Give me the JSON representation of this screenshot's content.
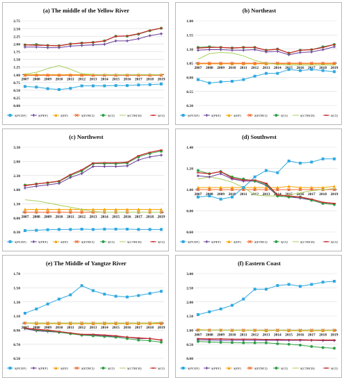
{
  "figure": {
    "legend_labels": [
      "S(PCEF)",
      "S(PEF)",
      "S(EF)",
      "S(ETHCI)",
      "S(CI)",
      "S(CTHCH)",
      "S(CI)"
    ],
    "colors": {
      "S_PCEF": "#2fa8e0",
      "S_PEF": "#6a3d9a",
      "S_EF": "#f4a300",
      "S_ETHCI": "#f06a2f",
      "S_CI_green": "#2ea043",
      "S_CTHCH": "#a6cf5a",
      "S_CI_red": "#c62828"
    },
    "markers": [
      "square",
      "cross",
      "triangle",
      "x",
      "circle",
      "none",
      "dash"
    ]
  },
  "chart_data": [
    {
      "type": "line",
      "title": "(a) The middle of the Yellow River",
      "x": [
        "2007",
        "2008",
        "2009",
        "2010",
        "2011",
        "2012",
        "2013",
        "2014",
        "2015",
        "2016",
        "2017",
        "2018",
        "2019"
      ],
      "y_ticks": [
        "0.00",
        "0.25",
        "0.50",
        "0.75",
        "1.00",
        "1.25",
        "1.50",
        "1.75",
        "2.00",
        "2.25",
        "2.50",
        "2.75"
      ],
      "ylim": [
        0,
        2.75
      ],
      "x_axis_at": 1.0,
      "grid": true,
      "legend": "bottom",
      "series": [
        {
          "name": "S(PCEF)",
          "values": [
            0.62,
            0.6,
            0.55,
            0.52,
            0.56,
            0.64,
            0.64,
            0.64,
            0.65,
            0.65,
            0.67,
            0.68,
            0.7
          ]
        },
        {
          "name": "S(PEF)",
          "values": [
            1.9,
            1.9,
            1.88,
            1.88,
            1.93,
            1.95,
            1.97,
            1.99,
            2.1,
            2.1,
            2.17,
            2.27,
            2.33
          ]
        },
        {
          "name": "S(EF)",
          "values": [
            1.0,
            1.0,
            1.0,
            1.0,
            1.0,
            1.0,
            1.0,
            1.0,
            1.0,
            1.0,
            1.0,
            1.0,
            1.0
          ]
        },
        {
          "name": "S(ETHCI)",
          "values": [
            0.98,
            0.98,
            0.98,
            0.98,
            0.98,
            0.98,
            0.98,
            0.98,
            0.98,
            0.98,
            0.98,
            0.98,
            0.98
          ]
        },
        {
          "name": "S(CI)",
          "values": [
            1.97,
            1.98,
            1.95,
            1.94,
            2.0,
            2.03,
            2.05,
            2.1,
            2.25,
            2.25,
            2.32,
            2.43,
            2.51
          ]
        },
        {
          "name": "S(CTHCH)",
          "values": [
            1.02,
            1.08,
            1.2,
            1.3,
            1.18,
            1.03,
            1.01,
            1.0,
            1.0,
            1.0,
            1.0,
            1.0,
            1.0
          ]
        },
        {
          "name": "S(CI)",
          "values": [
            1.97,
            1.96,
            1.95,
            1.94,
            2.0,
            2.03,
            2.05,
            2.1,
            2.25,
            2.26,
            2.33,
            2.44,
            2.51
          ]
        }
      ]
    },
    {
      "type": "line",
      "title": "(b) Northeast",
      "x": [
        "2007",
        "2008",
        "2009",
        "2010",
        "2011",
        "2012",
        "2013",
        "2014",
        "2015",
        "2016",
        "2017",
        "2018",
        "2019"
      ],
      "y_ticks": [
        "0.30",
        "0.55",
        "0.80",
        "1.05",
        "1.30",
        "1.55",
        "1.80"
      ],
      "ylim": [
        0.3,
        1.8
      ],
      "x_axis_at": 1.05,
      "grid": true,
      "legend": "bottom",
      "series": [
        {
          "name": "S(PCEF)",
          "values": [
            0.76,
            0.7,
            0.72,
            0.73,
            0.76,
            0.82,
            0.87,
            0.87,
            0.94,
            0.92,
            0.94,
            0.92,
            0.9
          ]
        },
        {
          "name": "S(PEF)",
          "values": [
            1.28,
            1.29,
            1.29,
            1.28,
            1.28,
            1.29,
            1.25,
            1.26,
            1.2,
            1.24,
            1.25,
            1.29,
            1.34
          ]
        },
        {
          "name": "S(EF)",
          "values": [
            1.04,
            1.04,
            1.04,
            1.04,
            1.04,
            1.04,
            1.04,
            1.04,
            1.04,
            1.04,
            1.04,
            1.04,
            1.04
          ]
        },
        {
          "name": "S(ETHCI)",
          "values": [
            1.05,
            1.05,
            1.05,
            1.05,
            1.05,
            1.05,
            1.05,
            1.05,
            1.05,
            1.05,
            1.05,
            1.05,
            1.05
          ]
        },
        {
          "name": "S(CI)",
          "values": [
            1.33,
            1.34,
            1.33,
            1.32,
            1.33,
            1.33,
            1.28,
            1.3,
            1.23,
            1.28,
            1.29,
            1.34,
            1.38
          ]
        },
        {
          "name": "S(CTHCH)",
          "values": [
            1.12,
            1.22,
            1.24,
            1.23,
            1.18,
            1.1,
            1.05,
            1.03,
            1.02,
            1.02,
            1.02,
            1.02,
            1.02
          ]
        },
        {
          "name": "S(CI)",
          "values": [
            1.32,
            1.33,
            1.33,
            1.32,
            1.33,
            1.33,
            1.28,
            1.3,
            1.23,
            1.28,
            1.29,
            1.33,
            1.38
          ]
        }
      ]
    },
    {
      "type": "line",
      "title": "(c) Northwest",
      "x": [
        "2007",
        "2008",
        "2009",
        "2010",
        "2011",
        "2012",
        "2013",
        "2014",
        "2015",
        "2016",
        "2017",
        "2018",
        "2019"
      ],
      "y_ticks": [
        "0.30",
        "0.80",
        "1.30",
        "1.80",
        "2.30",
        "2.80",
        "3.30"
      ],
      "ylim": [
        0.3,
        3.3
      ],
      "x_axis_at": 1.0,
      "grid": true,
      "legend": "bottom",
      "series": [
        {
          "name": "S(PCEF)",
          "values": [
            0.35,
            0.36,
            0.38,
            0.39,
            0.39,
            0.4,
            0.39,
            0.4,
            0.4,
            0.4,
            0.39,
            0.39,
            0.39
          ]
        },
        {
          "name": "S(PEF)",
          "values": [
            1.86,
            1.92,
            1.97,
            2.02,
            2.23,
            2.37,
            2.62,
            2.62,
            2.62,
            2.64,
            2.85,
            2.96,
            3.02
          ]
        },
        {
          "name": "S(EF)",
          "values": [
            1.1,
            1.1,
            1.1,
            1.1,
            1.1,
            1.1,
            1.1,
            1.1,
            1.1,
            1.1,
            1.1,
            1.1,
            1.1
          ]
        },
        {
          "name": "S(ETHCI)",
          "values": [
            1.0,
            1.0,
            1.0,
            1.0,
            1.0,
            1.0,
            1.0,
            1.0,
            1.0,
            1.0,
            1.0,
            1.0,
            1.0
          ]
        },
        {
          "name": "S(CI)",
          "values": [
            1.96,
            2.0,
            2.04,
            2.09,
            2.3,
            2.46,
            2.72,
            2.72,
            2.72,
            2.74,
            2.96,
            3.08,
            3.16
          ]
        },
        {
          "name": "S(CTHCH)",
          "values": [
            1.44,
            1.4,
            1.33,
            1.25,
            1.18,
            1.1,
            1.02,
            1.0,
            1.0,
            1.0,
            1.0,
            1.0,
            1.0
          ]
        },
        {
          "name": "S(CI)",
          "values": [
            1.94,
            2.0,
            2.05,
            2.1,
            2.33,
            2.5,
            2.74,
            2.75,
            2.75,
            2.77,
            3.0,
            3.12,
            3.2
          ]
        }
      ]
    },
    {
      "type": "line",
      "title": "(d) Southwest",
      "x": [
        "2007",
        "2008",
        "2009",
        "2010",
        "2011",
        "2012",
        "2013",
        "2014",
        "2015",
        "2016",
        "2017",
        "2018",
        "2019"
      ],
      "y_ticks": [
        "0.60",
        "0.80",
        "1.00",
        "1.20",
        "1.40"
      ],
      "ylim": [
        0.6,
        1.4
      ],
      "x_axis_at": 1.0,
      "grid": true,
      "legend": "bottom",
      "series": [
        {
          "name": "S(PCEF)",
          "values": [
            0.93,
            0.94,
            0.91,
            0.93,
            1.02,
            1.12,
            1.18,
            1.16,
            1.27,
            1.25,
            1.26,
            1.29,
            1.29
          ]
        },
        {
          "name": "S(PEF)",
          "values": [
            1.13,
            1.12,
            1.15,
            1.1,
            1.08,
            1.08,
            1.04,
            0.94,
            0.93,
            0.92,
            0.9,
            0.87,
            0.86
          ]
        },
        {
          "name": "S(EF)",
          "values": [
            1.02,
            1.02,
            1.02,
            1.02,
            1.02,
            1.02,
            1.02,
            1.02,
            1.03,
            1.02,
            1.02,
            1.02,
            1.03
          ]
        },
        {
          "name": "S(ETHCI)",
          "values": [
            1.0,
            1.0,
            1.0,
            1.0,
            1.0,
            1.0,
            1.0,
            1.0,
            1.0,
            1.0,
            1.0,
            1.0,
            1.0
          ]
        },
        {
          "name": "S(CI)",
          "values": [
            1.18,
            1.15,
            1.17,
            1.12,
            1.1,
            1.08,
            1.05,
            0.94,
            0.93,
            0.93,
            0.9,
            0.87,
            0.86
          ]
        },
        {
          "name": "S(CTHCH)",
          "values": [
            1.1,
            1.12,
            1.1,
            1.07,
            1.02,
            0.95,
            0.94,
            0.94,
            0.95,
            0.97,
            0.99,
            1.0,
            1.01
          ]
        },
        {
          "name": "S(CI)",
          "values": [
            1.16,
            1.15,
            1.17,
            1.11,
            1.09,
            1.09,
            1.06,
            0.95,
            0.94,
            0.93,
            0.91,
            0.88,
            0.87
          ]
        }
      ]
    },
    {
      "type": "line",
      "title": "(e) The Middle of Yangtze River",
      "x": [
        "2007",
        "2008",
        "2009",
        "2010",
        "2011",
        "2012",
        "2013",
        "2014",
        "2015",
        "2016",
        "2017",
        "2018",
        "2019"
      ],
      "y_ticks": [
        "0.50",
        "0.70",
        "0.90",
        "1.10",
        "1.30",
        "1.50",
        "1.70"
      ],
      "ylim": [
        0.5,
        1.7
      ],
      "x_axis_at": 1.0,
      "grid": true,
      "legend": "bottom",
      "series": [
        {
          "name": "S(PCEF)",
          "values": [
            1.14,
            1.2,
            1.27,
            1.34,
            1.4,
            1.53,
            1.46,
            1.41,
            1.38,
            1.37,
            1.39,
            1.42,
            1.45
          ]
        },
        {
          "name": "S(PEF)",
          "values": [
            0.92,
            0.89,
            0.88,
            0.87,
            0.85,
            0.83,
            0.83,
            0.82,
            0.81,
            0.8,
            0.78,
            0.78,
            0.76
          ]
        },
        {
          "name": "S(EF)",
          "values": [
            1.0,
            0.99,
            0.99,
            0.99,
            0.99,
            0.99,
            0.99,
            0.99,
            0.99,
            0.99,
            0.99,
            0.99,
            0.99
          ]
        },
        {
          "name": "S(ETHCI)",
          "values": [
            1.0,
            1.0,
            1.0,
            1.0,
            1.0,
            1.0,
            1.0,
            1.0,
            1.0,
            1.0,
            1.0,
            1.0,
            1.0
          ]
        },
        {
          "name": "S(CI)",
          "values": [
            0.93,
            0.9,
            0.89,
            0.87,
            0.85,
            0.83,
            0.82,
            0.81,
            0.8,
            0.78,
            0.76,
            0.75,
            0.73
          ]
        },
        {
          "name": "S(CTHCH)",
          "values": [
            1.0,
            1.0,
            1.0,
            1.0,
            1.0,
            1.0,
            1.0,
            1.0,
            1.0,
            1.0,
            1.0,
            1.0,
            1.01
          ]
        },
        {
          "name": "S(CI)",
          "values": [
            0.93,
            0.91,
            0.9,
            0.88,
            0.86,
            0.84,
            0.84,
            0.83,
            0.82,
            0.8,
            0.79,
            0.78,
            0.76
          ]
        }
      ]
    },
    {
      "type": "line",
      "title": "(f) Eastern Coast",
      "x": [
        "2007",
        "2008",
        "2009",
        "2010",
        "2011",
        "2012",
        "2013",
        "2014",
        "2015",
        "2016",
        "2017",
        "2018",
        "2019"
      ],
      "y_ticks": [
        "0.00",
        "0.50",
        "1.00",
        "1.50",
        "2.00",
        "2.50",
        "3.00"
      ],
      "ylim": [
        0,
        3.0
      ],
      "x_axis_at": 1.0,
      "grid": true,
      "legend": "bottom",
      "series": [
        {
          "name": "S(PCEF)",
          "values": [
            1.55,
            1.65,
            1.75,
            1.88,
            2.1,
            2.45,
            2.45,
            2.58,
            2.62,
            2.55,
            2.62,
            2.7,
            2.73
          ]
        },
        {
          "name": "S(PEF)",
          "values": [
            0.66,
            0.65,
            0.64,
            0.64,
            0.64,
            0.64,
            0.64,
            0.64,
            0.64,
            0.64,
            0.64,
            0.63,
            0.63
          ]
        },
        {
          "name": "S(EF)",
          "values": [
            1.02,
            1.0,
            1.0,
            0.99,
            0.99,
            0.99,
            0.98,
            0.99,
            0.98,
            0.98,
            0.98,
            0.98,
            0.99
          ]
        },
        {
          "name": "S(ETHCI)",
          "values": [
            1.0,
            1.0,
            1.0,
            1.0,
            1.0,
            1.0,
            1.0,
            1.0,
            1.0,
            1.0,
            1.0,
            1.0,
            1.0
          ]
        },
        {
          "name": "S(CI)",
          "values": [
            0.6,
            0.58,
            0.57,
            0.56,
            0.55,
            0.55,
            0.55,
            0.52,
            0.5,
            0.47,
            0.42,
            0.38,
            0.36
          ]
        },
        {
          "name": "S(CTHCH)",
          "values": [
            1.0,
            1.0,
            1.0,
            1.0,
            1.0,
            1.0,
            1.0,
            1.0,
            1.0,
            1.0,
            1.0,
            1.0,
            1.0
          ]
        },
        {
          "name": "S(CI)",
          "values": [
            0.7,
            0.69,
            0.69,
            0.68,
            0.68,
            0.68,
            0.67,
            0.67,
            0.66,
            0.66,
            0.65,
            0.65,
            0.65
          ]
        }
      ]
    }
  ]
}
